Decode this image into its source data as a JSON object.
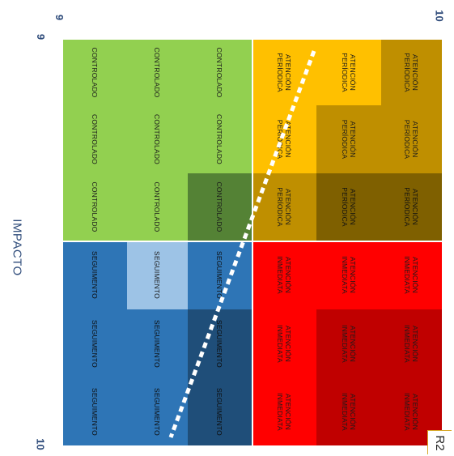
{
  "axes": {
    "top_left": "9",
    "top_right": "10",
    "left_top": "9",
    "left_bottom": "10",
    "impact_label": "IMPACTO"
  },
  "zone_tag": "R2",
  "colors": {
    "green_light": "#92d050",
    "green_dark": "#548235",
    "blue_pale": "#9dc3e6",
    "blue_mid": "#2e75b6",
    "blue_dark": "#1f4e79",
    "yellow": "#ffc000",
    "gold": "#bf8f00",
    "brown": "#7f6000",
    "red": "#ff0000",
    "red_dark": "#c00000"
  },
  "matrix": {
    "rows": [
      [
        "CONTROLADO",
        "CONTROLADO",
        "CONTROLADO",
        "SEGUIMENTO",
        "SEGUIMENTO",
        "SEGUIMENTO"
      ],
      [
        "CONTROLADO",
        "CONTROLADO",
        "CONTROLADO",
        "SEGUIMENTO",
        "SEGUIMENTO",
        "SEGUIMENTO"
      ],
      [
        "CONTROLADO",
        "CONTROLADO",
        "CONTROLADO",
        "SEGUIMENTO",
        "SEGUIMENTO",
        "SEGUIMENTO"
      ],
      [
        "ATENCIÓN\nPERÍODICA",
        "ATENCIÓN\nPERÍODICA",
        "ATENCIÓN\nPERÍODICA",
        "ATENCIÓN\nINMEDIATA",
        "ATENCIÓN\nINMEDIATA",
        "ATENCIÓN\nINMEDIATA"
      ],
      [
        "ATENCIÓN\nPERÍODICA",
        "ATENCIÓN\nPERÍODICA",
        "ATENCIÓN\nPERÍODICA",
        "ATENCIÓN\nINMEDIATA",
        "ATENCIÓN\nINMEDIATA",
        "ATENCIÓN\nINMEDIATA"
      ],
      [
        "ATENCIÓN\nPERÍODICA",
        "ATENCIÓN\nPERÍODICA",
        "ATENCIÓN\nPERÍODICA",
        "ATENCIÓN\nINMEDIATA",
        "ATENCIÓN\nINMEDIATA",
        "ATENCIÓN\nINMEDIATA"
      ]
    ],
    "fills": [
      [
        "green_light",
        "green_light",
        "green_light",
        "blue_mid",
        "blue_mid",
        "blue_mid"
      ],
      [
        "green_light",
        "green_light",
        "green_light",
        "blue_pale",
        "blue_mid",
        "blue_mid"
      ],
      [
        "green_light",
        "green_light",
        "green_dark",
        "blue_mid",
        "blue_dark",
        "blue_dark"
      ],
      [
        "yellow",
        "yellow",
        "gold",
        "red",
        "red",
        "red"
      ],
      [
        "yellow",
        "gold",
        "brown",
        "red",
        "red_dark",
        "red_dark"
      ],
      [
        "gold",
        "gold",
        "brown",
        "red",
        "red_dark",
        "red_dark"
      ]
    ]
  }
}
